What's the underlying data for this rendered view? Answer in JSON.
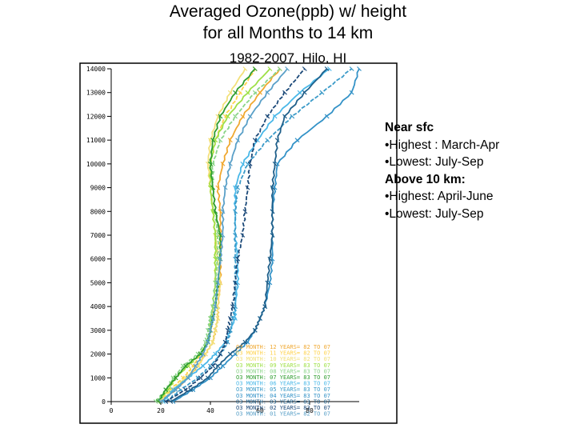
{
  "title_line1": "Averaged Ozone(ppb)  w/ height",
  "title_line2": "for all Months to 14 km",
  "subtitle": "1982-2007, Hilo, HI",
  "notes": [
    {
      "text": "Near sfc",
      "style": "heading"
    },
    {
      "text": "•Highest : March-Apr",
      "style": "item"
    },
    {
      "text": "•Lowest: July-Sep",
      "style": "item"
    },
    {
      "text": "Above 10 km:",
      "style": "heading"
    },
    {
      "text": "•Highest: April-June",
      "style": "item"
    },
    {
      "text": "•Lowest: July-Sep",
      "style": "item"
    }
  ],
  "chart_data": {
    "type": "line",
    "title": "Averaged Ozone(ppb)  w/ height for all Months to 14 km",
    "subtitle": "1982-2007, Hilo, HI",
    "xlabel": "",
    "ylabel": "",
    "xlim": [
      0,
      100
    ],
    "ylim": [
      0,
      14000
    ],
    "x_ticks": [
      0,
      20,
      40,
      60,
      80
    ],
    "y_ticks": [
      0,
      1000,
      2000,
      3000,
      4000,
      5000,
      6000,
      7000,
      8000,
      9000,
      10000,
      11000,
      12000,
      13000,
      14000
    ],
    "grid": false,
    "legend_position": "bottom-right",
    "legend_format": "O3 MONTH: {month}  YEARS= {start} TO {end}",
    "heights": [
      0,
      500,
      1000,
      1500,
      2000,
      2500,
      3000,
      3500,
      4000,
      5000,
      6000,
      7000,
      8000,
      9000,
      10000,
      11000,
      12000,
      13000,
      14000
    ],
    "series": [
      {
        "name": "12",
        "label": "O3 MONTH: 12  YEARS= 82 TO 07",
        "color": "#f0a830",
        "values": [
          20,
          26,
          31,
          35,
          38,
          41,
          42,
          43,
          43,
          44,
          44,
          44,
          44,
          43,
          45,
          48,
          53,
          60,
          68
        ]
      },
      {
        "name": "11",
        "label": "O3 MONTH: 11  YEARS= 82 TO 07",
        "color": "#ffd24a",
        "values": [
          19,
          24,
          29,
          33,
          36,
          39,
          40,
          41,
          41,
          42,
          42,
          42,
          41,
          40,
          40,
          42,
          46,
          52,
          58
        ]
      },
      {
        "name": "10",
        "label": "O3 MONTH: 10  YEARS= 82 TO 07",
        "color": "#f2e07a",
        "values": [
          20,
          25,
          30,
          35,
          38,
          41,
          42,
          43,
          43,
          44,
          43,
          42,
          41,
          40,
          39,
          40,
          43,
          48,
          54
        ]
      },
      {
        "name": "09",
        "label": "O3 MONTH: 09  YEARS= 83 TO 07",
        "color": "#9ee046",
        "values": [
          19,
          23,
          26,
          31,
          36,
          39,
          40,
          40,
          41,
          42,
          42,
          42,
          41,
          40,
          40,
          42,
          47,
          55,
          64
        ]
      },
      {
        "name": "08",
        "label": "O3 MONTH: 08  YEARS= 83 TO 07",
        "color": "#8ad488",
        "values": [
          18,
          22,
          25,
          29,
          35,
          38,
          39,
          40,
          41,
          42,
          43,
          43,
          42,
          41,
          41,
          44,
          50,
          58,
          68
        ]
      },
      {
        "name": "07",
        "label": "O3 MONTH: 07  YEARS= 83 TO 07",
        "color": "#2e9d2e",
        "values": [
          19,
          22,
          26,
          30,
          36,
          39,
          40,
          41,
          42,
          43,
          44,
          44,
          42,
          41,
          40,
          41,
          44,
          50,
          58
        ]
      },
      {
        "name": "06",
        "label": "O3 MONTH: 06  YEARS= 83 TO 07",
        "color": "#4ab8e8",
        "values": [
          21,
          25,
          31,
          37,
          42,
          46,
          48,
          50,
          50,
          51,
          51,
          50,
          50,
          50,
          53,
          59,
          66,
          76,
          88
        ]
      },
      {
        "name": "05",
        "label": "O3 MONTH: 05  YEARS= 83 TO 07",
        "color": "#3a9ac8",
        "values": [
          22,
          28,
          35,
          40,
          44,
          47,
          48,
          49,
          50,
          50,
          50,
          50,
          50,
          51,
          55,
          63,
          73,
          85,
          97
        ]
      },
      {
        "name": "04",
        "label": "O3 MONTH: 04  YEARS= 83 TO 07",
        "color": "#3392c7",
        "values": [
          25,
          33,
          40,
          45,
          50,
          55,
          58,
          60,
          62,
          64,
          65,
          65,
          65,
          66,
          67,
          75,
          87,
          97,
          100
        ]
      },
      {
        "name": "03",
        "label": "O3 MONTH: 03  YEARS= 83 TO 07",
        "color": "#1f5f8a",
        "values": [
          24,
          32,
          39,
          43,
          48,
          54,
          58,
          60,
          62,
          63,
          64,
          65,
          65,
          65,
          66,
          67,
          70,
          78,
          87
        ]
      },
      {
        "name": "02",
        "label": "O3 MONTH: 02  YEARS= 83 TO 07",
        "color": "#1a4878",
        "values": [
          22,
          30,
          36,
          41,
          44,
          46,
          47,
          48,
          49,
          50,
          51,
          53,
          54,
          55,
          56,
          58,
          63,
          70,
          78
        ]
      },
      {
        "name": "01",
        "label": "O3 MONTH: 01  YEARS= 82 TO 07",
        "color": "#5aa0c8",
        "values": [
          20,
          26,
          31,
          34,
          37,
          39,
          40,
          41,
          42,
          43,
          44,
          45,
          45,
          46,
          48,
          51,
          56,
          63,
          71
        ]
      }
    ]
  }
}
